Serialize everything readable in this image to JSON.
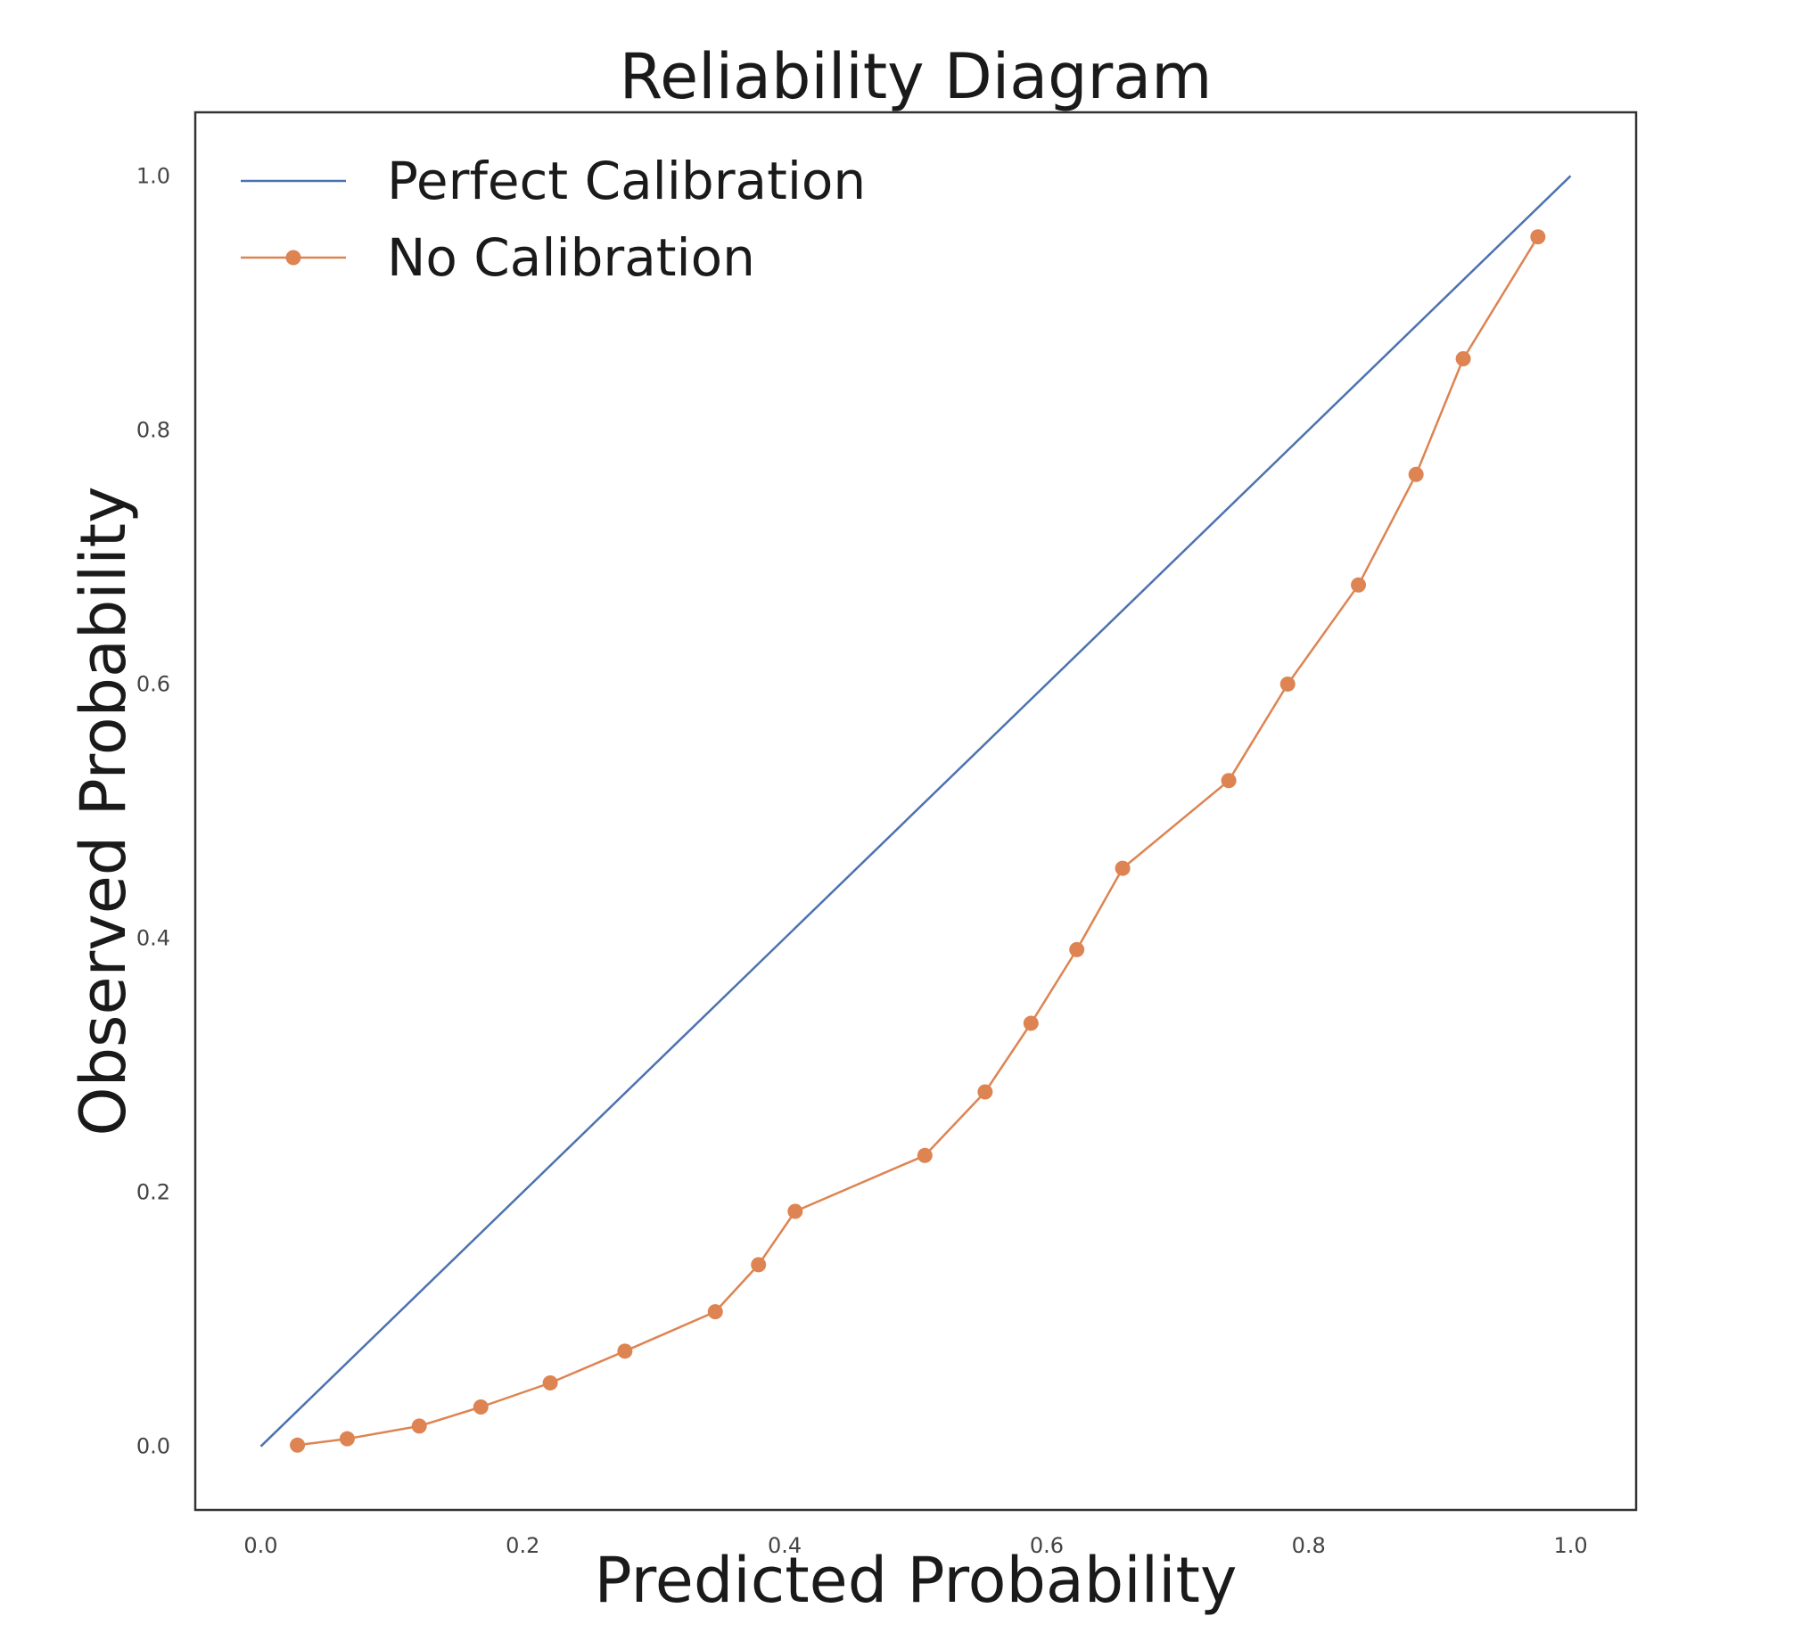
{
  "chart_data": {
    "type": "line",
    "title": "Reliability Diagram",
    "xlabel": "Predicted Probability",
    "ylabel": "Observed Probability",
    "xlim": [
      -0.05,
      1.05
    ],
    "ylim": [
      -0.05,
      1.05
    ],
    "x_ticks": [
      "0.0",
      "0.2",
      "0.4",
      "0.6",
      "0.8",
      "1.0"
    ],
    "y_ticks": [
      "0.0",
      "0.2",
      "0.4",
      "0.6",
      "0.8",
      "1.0"
    ],
    "grid": false,
    "legend_position": "top-left",
    "series": [
      {
        "name": "Perfect Calibration",
        "color": "#4c72b0",
        "marker": "none",
        "x": [
          0.0,
          1.0
        ],
        "y": [
          0.0,
          1.0
        ]
      },
      {
        "name": "No Calibration",
        "color": "#dd8452",
        "marker": "circle",
        "x": [
          0.028,
          0.066,
          0.121,
          0.168,
          0.221,
          0.278,
          0.347,
          0.38,
          0.408,
          0.507,
          0.553,
          0.588,
          0.623,
          0.658,
          0.739,
          0.784,
          0.838,
          0.882,
          0.918,
          0.975
        ],
        "y": [
          0.001,
          0.006,
          0.016,
          0.031,
          0.05,
          0.075,
          0.106,
          0.143,
          0.185,
          0.229,
          0.279,
          0.333,
          0.391,
          0.455,
          0.524,
          0.6,
          0.678,
          0.765,
          0.856,
          0.952
        ]
      }
    ]
  }
}
